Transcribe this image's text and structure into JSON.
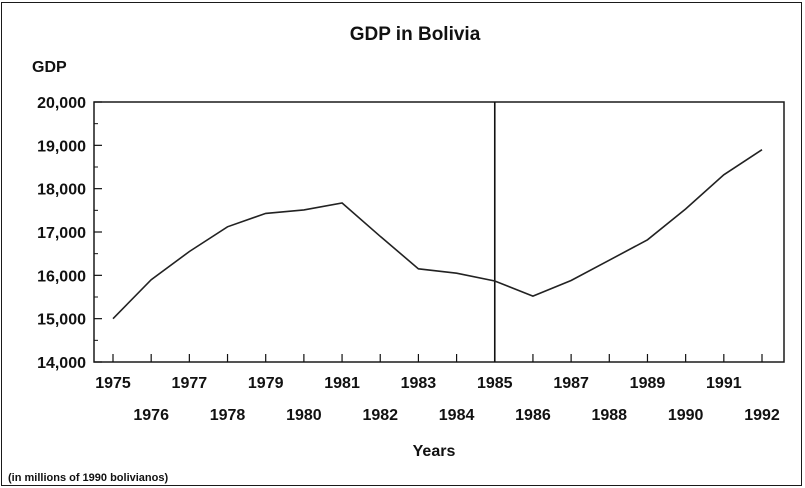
{
  "chart_data": {
    "type": "line",
    "title": "GDP in Bolivia",
    "ylabel": "GDP",
    "xlabel": "Years",
    "note": "(in millions of 1990 bolivianos)",
    "ylim": [
      14000,
      20000
    ],
    "yticks": [
      14000,
      15000,
      16000,
      17000,
      18000,
      19000,
      20000
    ],
    "ytick_labels": [
      "14,000",
      "15,000",
      "16,000",
      "17,000",
      "18,000",
      "19,000",
      "20,000"
    ],
    "xlim": [
      1975,
      1992
    ],
    "x": [
      1975,
      1976,
      1977,
      1978,
      1979,
      1980,
      1981,
      1982,
      1983,
      1984,
      1985,
      1986,
      1987,
      1988,
      1989,
      1990,
      1991,
      1992
    ],
    "series": [
      {
        "values": [
          15000,
          15900,
          16550,
          17120,
          17430,
          17510,
          17670,
          16900,
          16150,
          16050,
          15870,
          15520,
          15880,
          16350,
          16820,
          17530,
          18320,
          18900
        ]
      }
    ],
    "marker_year": 1985,
    "grid": false,
    "line_color": "#222222"
  }
}
